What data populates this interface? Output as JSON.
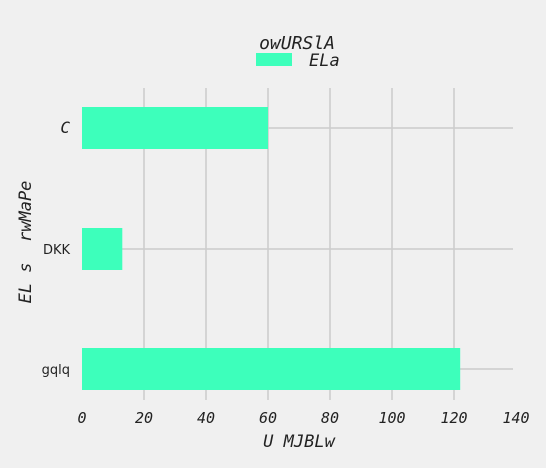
{
  "chart_data": {
    "type": "bar",
    "orientation": "horizontal",
    "title": "owURSlA",
    "xlabel": "U MJBLw",
    "ylabel": "EL s  rwMaPe",
    "categories": [
      "C",
      "DKK",
      "gqlq"
    ],
    "series": [
      {
        "name": "ELa",
        "values": [
          60,
          13,
          122
        ],
        "color": "#3dffbb"
      }
    ],
    "xlim": [
      0,
      140
    ],
    "xticks": [
      0,
      20,
      40,
      60,
      80,
      100,
      120,
      140
    ],
    "grid": true,
    "legend_position": "top-center"
  },
  "colors": {
    "background": "#f0f0f0",
    "grid": "#cbcbcb",
    "text": "#222222"
  }
}
